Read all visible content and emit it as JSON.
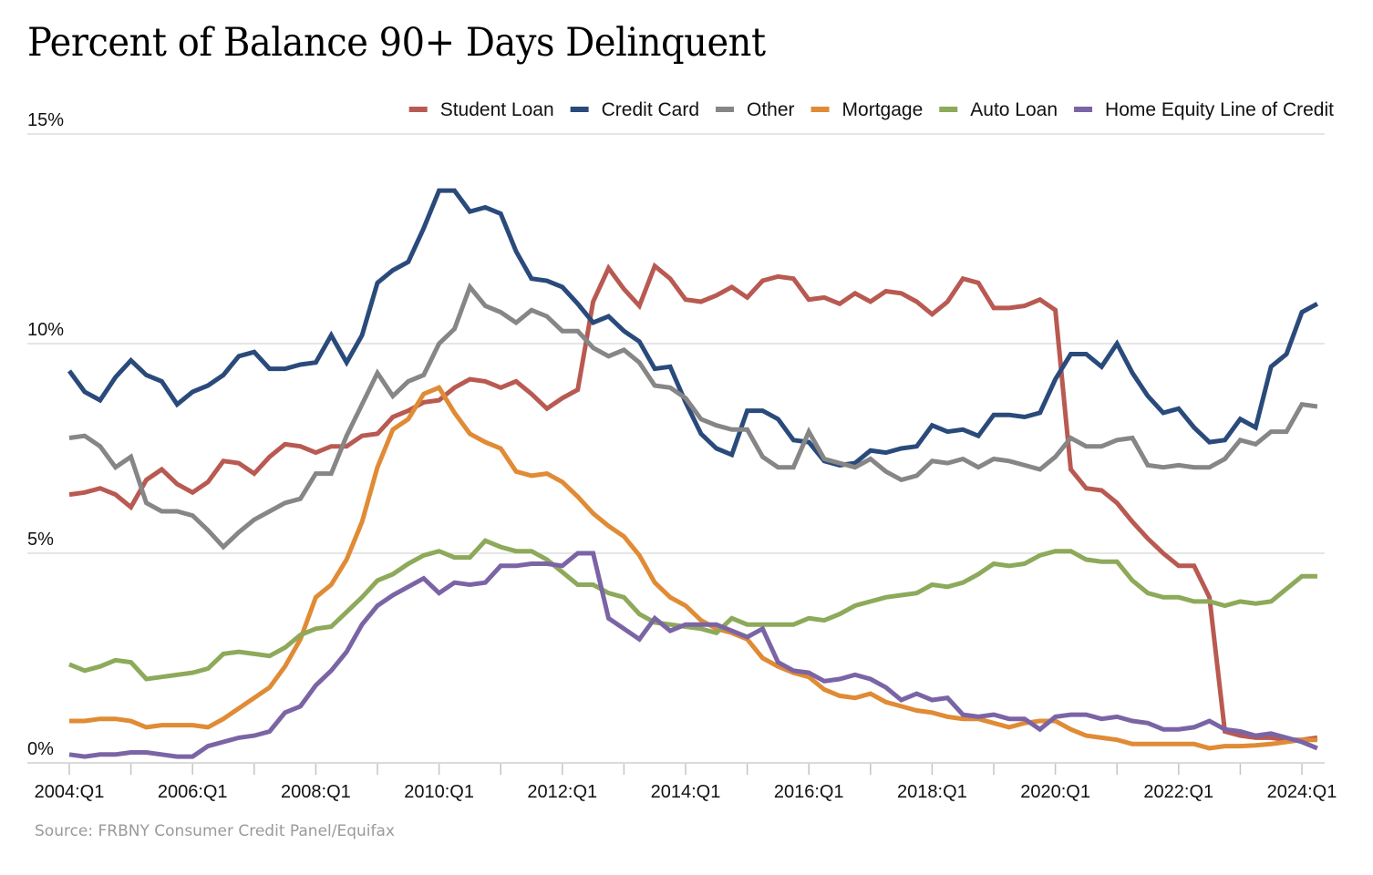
{
  "chart_data": {
    "type": "line",
    "title": "Percent of Balance 90+ Days Delinquent",
    "xlabel": "",
    "ylabel": "",
    "source": "Source: FRBNY Consumer Credit Panel/Equifax",
    "ylim": [
      0,
      15
    ],
    "yticks": [
      0,
      5,
      10,
      15
    ],
    "ytick_labels": [
      "0%",
      "5%",
      "10%",
      "15%"
    ],
    "xtick_labels": [
      "2004:Q1",
      "2006:Q1",
      "2008:Q1",
      "2010:Q1",
      "2012:Q1",
      "2014:Q1",
      "2016:Q1",
      "2018:Q1",
      "2020:Q1",
      "2022:Q1",
      "2024:Q1"
    ],
    "x_start": "2004:Q1",
    "x_end": "2024:Q2",
    "grid": "horizontal",
    "legend_position": "top-right",
    "series": [
      {
        "name": "Student Loan",
        "color": "#b85a52",
        "values": [
          6.4,
          6.45,
          6.55,
          6.4,
          6.1,
          6.75,
          7.0,
          6.65,
          6.45,
          6.7,
          7.2,
          7.15,
          6.9,
          7.3,
          7.6,
          7.55,
          7.4,
          7.55,
          7.55,
          7.8,
          7.85,
          8.25,
          8.4,
          8.6,
          8.65,
          8.95,
          9.15,
          9.1,
          8.95,
          9.1,
          8.8,
          8.45,
          8.7,
          8.9,
          11.0,
          11.8,
          11.3,
          10.9,
          11.85,
          11.55,
          11.05,
          11.0,
          11.15,
          11.35,
          11.1,
          11.5,
          11.6,
          11.55,
          11.05,
          11.1,
          10.95,
          11.2,
          11.0,
          11.25,
          11.2,
          11.0,
          10.7,
          11.0,
          11.55,
          11.45,
          10.85,
          10.85,
          10.9,
          11.05,
          10.8,
          7.0,
          6.55,
          6.5,
          6.2,
          5.75,
          5.35,
          5.0,
          4.7,
          4.7,
          3.95,
          0.75,
          0.65,
          0.6,
          0.6,
          0.55,
          0.55,
          0.6
        ]
      },
      {
        "name": "Credit Card",
        "color": "#2a4a7b",
        "values": [
          9.35,
          8.85,
          8.65,
          9.2,
          9.6,
          9.25,
          9.1,
          8.55,
          8.85,
          9.0,
          9.25,
          9.7,
          9.8,
          9.4,
          9.4,
          9.5,
          9.55,
          10.2,
          9.55,
          10.2,
          11.45,
          11.75,
          11.95,
          12.75,
          13.65,
          13.65,
          13.15,
          13.25,
          13.1,
          12.2,
          11.55,
          11.5,
          11.35,
          10.95,
          10.5,
          10.65,
          10.3,
          10.05,
          9.4,
          9.45,
          8.6,
          7.85,
          7.5,
          7.35,
          8.4,
          8.4,
          8.2,
          7.7,
          7.65,
          7.2,
          7.1,
          7.15,
          7.45,
          7.4,
          7.5,
          7.55,
          8.05,
          7.9,
          7.95,
          7.8,
          8.3,
          8.3,
          8.25,
          8.35,
          9.15,
          9.75,
          9.75,
          9.45,
          10.0,
          9.3,
          8.75,
          8.35,
          8.45,
          8.0,
          7.65,
          7.7,
          8.2,
          8.0,
          9.45,
          9.75,
          10.75,
          10.95
        ]
      },
      {
        "name": "Other",
        "color": "#868686",
        "values": [
          7.75,
          7.8,
          7.55,
          7.05,
          7.3,
          6.2,
          6.0,
          6.0,
          5.9,
          5.55,
          5.15,
          5.5,
          5.8,
          6.0,
          6.2,
          6.3,
          6.9,
          6.9,
          7.8,
          8.55,
          9.3,
          8.75,
          9.1,
          9.25,
          10.0,
          10.35,
          11.35,
          10.9,
          10.75,
          10.5,
          10.8,
          10.65,
          10.3,
          10.3,
          9.9,
          9.7,
          9.85,
          9.55,
          9.0,
          8.95,
          8.7,
          8.2,
          8.05,
          7.95,
          7.95,
          7.3,
          7.05,
          7.05,
          7.9,
          7.25,
          7.15,
          7.05,
          7.25,
          6.95,
          6.75,
          6.85,
          7.2,
          7.15,
          7.25,
          7.05,
          7.25,
          7.2,
          7.1,
          7.0,
          7.3,
          7.75,
          7.55,
          7.55,
          7.7,
          7.75,
          7.1,
          7.05,
          7.1,
          7.05,
          7.05,
          7.25,
          7.7,
          7.6,
          7.9,
          7.9,
          8.55,
          8.5
        ]
      },
      {
        "name": "Mortgage",
        "color": "#e08b35",
        "values": [
          1.0,
          1.0,
          1.05,
          1.05,
          1.0,
          0.85,
          0.9,
          0.9,
          0.9,
          0.85,
          1.05,
          1.3,
          1.55,
          1.8,
          2.3,
          2.95,
          3.95,
          4.25,
          4.85,
          5.75,
          7.05,
          7.95,
          8.2,
          8.8,
          8.95,
          8.35,
          7.85,
          7.65,
          7.5,
          6.95,
          6.85,
          6.9,
          6.7,
          6.35,
          5.95,
          5.65,
          5.4,
          4.95,
          4.3,
          3.95,
          3.75,
          3.4,
          3.2,
          3.1,
          2.95,
          2.5,
          2.3,
          2.15,
          2.05,
          1.75,
          1.6,
          1.55,
          1.65,
          1.45,
          1.35,
          1.25,
          1.2,
          1.1,
          1.05,
          1.05,
          0.95,
          0.85,
          0.95,
          1.0,
          1.0,
          0.8,
          0.65,
          0.6,
          0.55,
          0.45,
          0.45,
          0.45,
          0.45,
          0.45,
          0.35,
          0.4,
          0.4,
          0.42,
          0.45,
          0.5,
          0.55,
          0.55
        ]
      },
      {
        "name": "Auto Loan",
        "color": "#8da95a",
        "values": [
          2.35,
          2.2,
          2.3,
          2.45,
          2.4,
          2.0,
          2.05,
          2.1,
          2.15,
          2.25,
          2.6,
          2.65,
          2.6,
          2.55,
          2.75,
          3.05,
          3.2,
          3.25,
          3.6,
          3.95,
          4.35,
          4.5,
          4.75,
          4.95,
          5.05,
          4.9,
          4.9,
          5.3,
          5.15,
          5.05,
          5.05,
          4.85,
          4.55,
          4.25,
          4.25,
          4.05,
          3.95,
          3.55,
          3.35,
          3.3,
          3.25,
          3.2,
          3.1,
          3.45,
          3.3,
          3.3,
          3.3,
          3.3,
          3.45,
          3.4,
          3.55,
          3.75,
          3.85,
          3.95,
          4.0,
          4.05,
          4.25,
          4.2,
          4.3,
          4.5,
          4.75,
          4.7,
          4.75,
          4.95,
          5.05,
          5.05,
          4.85,
          4.8,
          4.8,
          4.35,
          4.05,
          3.95,
          3.95,
          3.85,
          3.85,
          3.75,
          3.85,
          3.8,
          3.85,
          4.15,
          4.45,
          4.45
        ]
      },
      {
        "name": "Home Equity Line of Credit",
        "color": "#7b64a5",
        "values": [
          0.2,
          0.15,
          0.2,
          0.2,
          0.25,
          0.25,
          0.2,
          0.15,
          0.15,
          0.4,
          0.5,
          0.6,
          0.65,
          0.75,
          1.2,
          1.35,
          1.85,
          2.2,
          2.65,
          3.3,
          3.75,
          4.0,
          4.2,
          4.4,
          4.05,
          4.3,
          4.25,
          4.3,
          4.7,
          4.7,
          4.75,
          4.75,
          4.7,
          5.0,
          5.0,
          3.45,
          3.2,
          2.95,
          3.45,
          3.15,
          3.3,
          3.3,
          3.3,
          3.15,
          3.0,
          3.2,
          2.4,
          2.2,
          2.15,
          1.95,
          2.0,
          2.1,
          2.0,
          1.8,
          1.5,
          1.65,
          1.5,
          1.55,
          1.15,
          1.1,
          1.15,
          1.05,
          1.05,
          0.8,
          1.1,
          1.15,
          1.15,
          1.05,
          1.1,
          1.0,
          0.95,
          0.8,
          0.8,
          0.85,
          1.0,
          0.8,
          0.75,
          0.65,
          0.7,
          0.6,
          0.5,
          0.35
        ]
      }
    ]
  }
}
